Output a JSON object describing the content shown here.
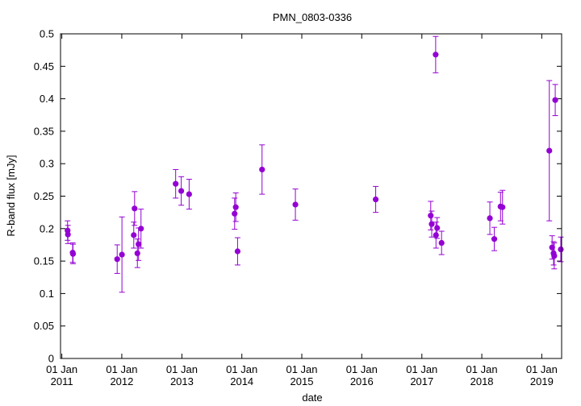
{
  "chart_data": {
    "type": "scatter",
    "title": "PMN_0803-0336",
    "xlabel": "date",
    "ylabel": "R-band flux [mJy]",
    "ylim": [
      0,
      0.5
    ],
    "xlim": [
      "2010-12-24",
      "2019-05-02"
    ],
    "grid": false,
    "legend": "none",
    "marker_color": "#9400d3",
    "y_ticks": [
      "0",
      "0.05",
      "0.1",
      "0.15",
      "0.2",
      "0.25",
      "0.3",
      "0.35",
      "0.4",
      "0.45",
      "0.5"
    ],
    "x_ticks": [
      {
        "date": "2011-01-01",
        "line1": "01 Jan",
        "line2": "2011"
      },
      {
        "date": "2012-01-01",
        "line1": "01 Jan",
        "line2": "2012"
      },
      {
        "date": "2013-01-01",
        "line1": "01 Jan",
        "line2": "2013"
      },
      {
        "date": "2014-01-01",
        "line1": "01 Jan",
        "line2": "2014"
      },
      {
        "date": "2015-01-01",
        "line1": "01 Jan",
        "line2": "2015"
      },
      {
        "date": "2016-01-01",
        "line1": "01 Jan",
        "line2": "2016"
      },
      {
        "date": "2017-01-01",
        "line1": "01 Jan",
        "line2": "2017"
      },
      {
        "date": "2018-01-01",
        "line1": "01 Jan",
        "line2": "2018"
      },
      {
        "date": "2019-01-01",
        "line1": "01 Jan",
        "line2": "2019"
      }
    ],
    "points": [
      {
        "x": "2011-02-05",
        "y": 0.197,
        "err": 0.015
      },
      {
        "x": "2011-02-07",
        "y": 0.191,
        "err": 0.014
      },
      {
        "x": "2011-03-08",
        "y": 0.163,
        "err": 0.015
      },
      {
        "x": "2011-03-10",
        "y": 0.161,
        "err": 0.015
      },
      {
        "x": "2011-12-04",
        "y": 0.153,
        "err": 0.022
      },
      {
        "x": "2012-01-02",
        "y": 0.16,
        "err": 0.058
      },
      {
        "x": "2012-03-14",
        "y": 0.19,
        "err": 0.02
      },
      {
        "x": "2012-03-19",
        "y": 0.231,
        "err": 0.026
      },
      {
        "x": "2012-04-05",
        "y": 0.162,
        "err": 0.022
      },
      {
        "x": "2012-04-12",
        "y": 0.176,
        "err": 0.025
      },
      {
        "x": "2012-04-27",
        "y": 0.2,
        "err": 0.03
      },
      {
        "x": "2012-11-24",
        "y": 0.269,
        "err": 0.022
      },
      {
        "x": "2012-12-28",
        "y": 0.258,
        "err": 0.022
      },
      {
        "x": "2013-02-14",
        "y": 0.253,
        "err": 0.023
      },
      {
        "x": "2013-11-18",
        "y": 0.223,
        "err": 0.024
      },
      {
        "x": "2013-11-25",
        "y": 0.233,
        "err": 0.022
      },
      {
        "x": "2013-12-06",
        "y": 0.165,
        "err": 0.021
      },
      {
        "x": "2014-05-04",
        "y": 0.291,
        "err": 0.038
      },
      {
        "x": "2014-11-23",
        "y": 0.237,
        "err": 0.024
      },
      {
        "x": "2016-03-26",
        "y": 0.245,
        "err": 0.02
      },
      {
        "x": "2017-02-24",
        "y": 0.22,
        "err": 0.022
      },
      {
        "x": "2017-03-02",
        "y": 0.207,
        "err": 0.02
      },
      {
        "x": "2017-03-26",
        "y": 0.468,
        "err": 0.028
      },
      {
        "x": "2017-03-28",
        "y": 0.19,
        "err": 0.02
      },
      {
        "x": "2017-04-04",
        "y": 0.201,
        "err": 0.016
      },
      {
        "x": "2017-05-01",
        "y": 0.178,
        "err": 0.018
      },
      {
        "x": "2018-02-19",
        "y": 0.216,
        "err": 0.025
      },
      {
        "x": "2018-03-18",
        "y": 0.184,
        "err": 0.018
      },
      {
        "x": "2018-04-25",
        "y": 0.234,
        "err": 0.022
      },
      {
        "x": "2018-05-07",
        "y": 0.233,
        "err": 0.026
      },
      {
        "x": "2019-02-16",
        "y": 0.32,
        "err": 0.108
      },
      {
        "x": "2019-03-05",
        "y": 0.171,
        "err": 0.018
      },
      {
        "x": "2019-03-14",
        "y": 0.162,
        "err": 0.018
      },
      {
        "x": "2019-03-18",
        "y": 0.158,
        "err": 0.02
      },
      {
        "x": "2019-03-24",
        "y": 0.398,
        "err": 0.024
      },
      {
        "x": "2019-04-27",
        "y": 0.168,
        "err": 0.019
      }
    ]
  }
}
